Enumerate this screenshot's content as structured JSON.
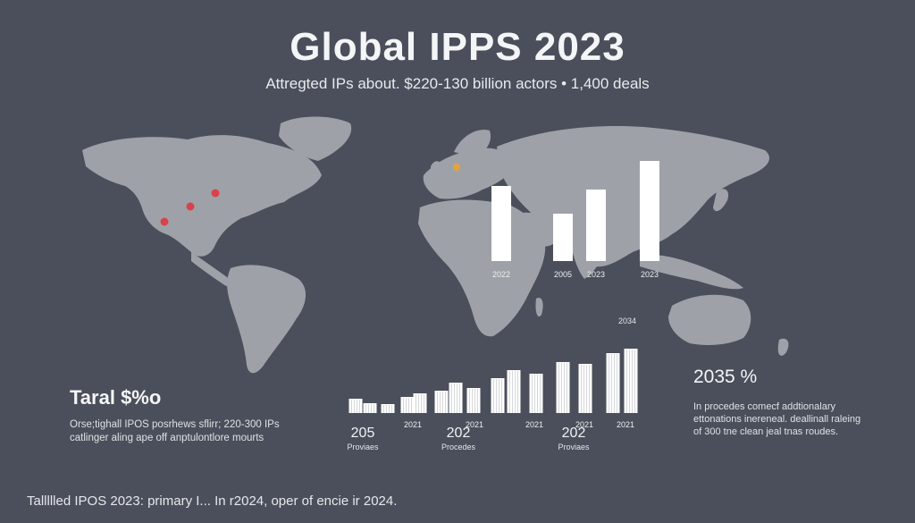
{
  "title": "Global IPPS 2023",
  "subtitle": "Attregted IPs about. $220-130 billion actors • 1,400 deals",
  "left_panel": {
    "heading": "Taral $%o",
    "text": "Orse;tighall IPOS posrhews sflirr; 220-300 IPs catlinger aling ape off anptulontlore mourts"
  },
  "right_panel": {
    "heading": "2035 %",
    "text": "In procedes comecf addtionalary ettonations inereneal. deallinall raleing of 300 tne clean jeal tnas roudes."
  },
  "footer": "Tallllled IPOS 2023: primary I... In r2024, oper of encie ir 2024.",
  "colors": {
    "background": "#4a4f5b",
    "land": "#9ea2a8",
    "bars": "#ffffff",
    "marker_red": "#d9424a",
    "marker_orange": "#e8a23a"
  },
  "map_markers": [
    {
      "label": "west-coast",
      "color": "red"
    },
    {
      "label": "midwest",
      "color": "red"
    },
    {
      "label": "northeast",
      "color": "red"
    },
    {
      "label": "europe",
      "color": "orange"
    }
  ],
  "chart_data": [
    {
      "type": "bar",
      "categories": [
        "2022",
        "2005",
        "2023",
        "2023"
      ],
      "values": [
        84,
        53,
        80,
        112
      ],
      "title": "",
      "xlabel": "",
      "ylabel": ""
    },
    {
      "type": "bar",
      "group_labels": [
        "205",
        "202",
        "202"
      ],
      "group_captions": [
        "Proviaes",
        "Procedes",
        "Proviaes"
      ],
      "tick_labels": [
        "2021",
        "2021",
        "2021",
        "2021",
        "2021"
      ],
      "top_label": "2034",
      "values": [
        16,
        11,
        10,
        18,
        22,
        25,
        34,
        28,
        39,
        48,
        44,
        57,
        55,
        67,
        72,
        80,
        88
      ]
    }
  ]
}
